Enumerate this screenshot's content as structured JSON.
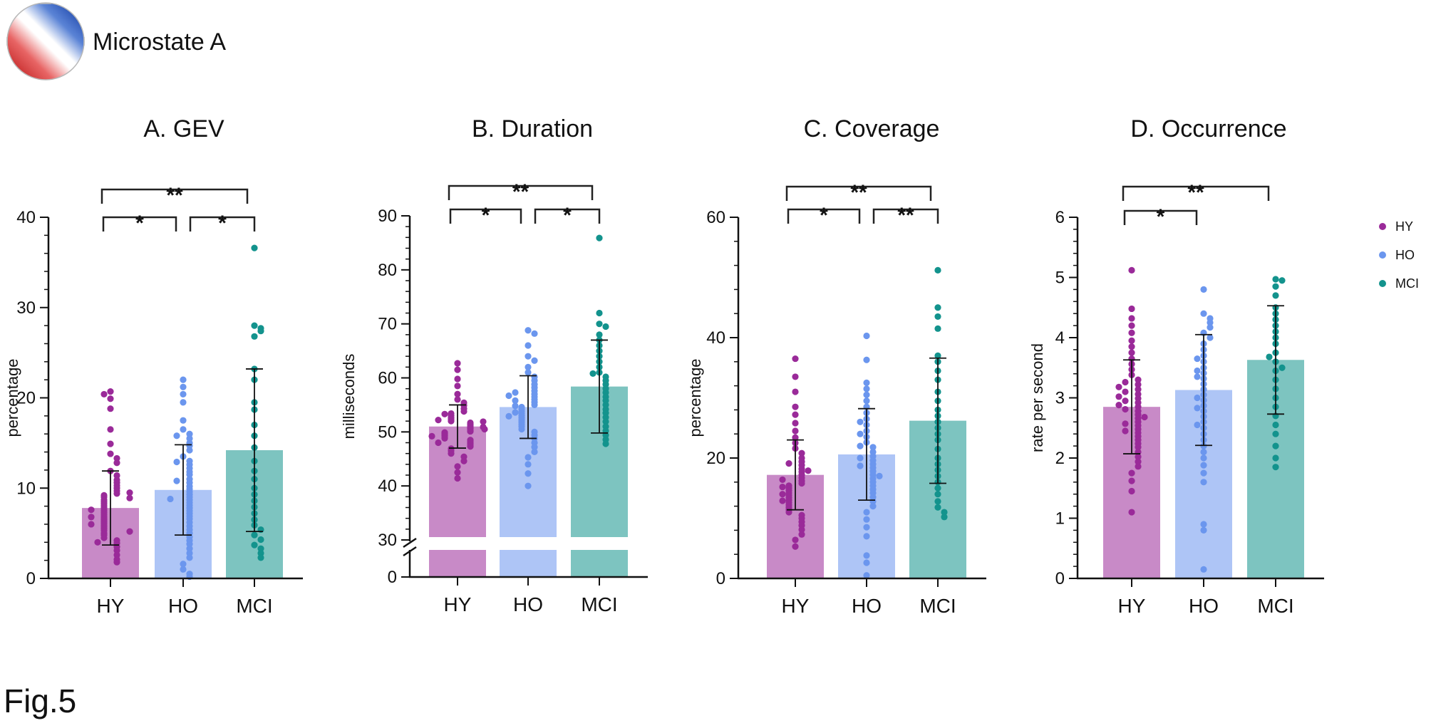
{
  "header": {
    "label": "Microstate A"
  },
  "figure_label": "Fig.5",
  "colors": {
    "HY": "#9a2a99",
    "HO": "#6b96ee",
    "MCI": "#13938d",
    "axis": "#111111"
  },
  "legend": [
    {
      "key": "HY",
      "label": "HY"
    },
    {
      "key": "HO",
      "label": "HO"
    },
    {
      "key": "MCI",
      "label": "MCI"
    }
  ],
  "chart_data": [
    {
      "id": "gev",
      "type": "bar",
      "title": "A. GEV",
      "ylabel": "percentage",
      "categories": [
        "HY",
        "HO",
        "MCI"
      ],
      "ylim": [
        0,
        40
      ],
      "yticks": [
        0,
        10,
        20,
        30,
        40
      ],
      "values": [
        7.8,
        9.8,
        14.2
      ],
      "sd": [
        4.1,
        5.0,
        9.0
      ],
      "axis_break": null,
      "significance": [
        {
          "from": 0,
          "to": 1,
          "label": "*",
          "level": 1
        },
        {
          "from": 1,
          "to": 2,
          "label": "*",
          "level": 1
        },
        {
          "from": 0,
          "to": 2,
          "label": "**",
          "level": 2
        }
      ],
      "points": [
        [
          20.7,
          19.9,
          20.4,
          18.8,
          16.5,
          14.9,
          13.8,
          13.3,
          12.8,
          11.9,
          11.4,
          10.9,
          10.6,
          10.3,
          10.0,
          9.7,
          9.4,
          9.2,
          9.0,
          8.7,
          8.5,
          8.3,
          8.1,
          7.9,
          7.7,
          7.5,
          7.3,
          7.1,
          6.9,
          6.7,
          6.5,
          6.3,
          6.1,
          5.9,
          5.7,
          5.5,
          5.3,
          5.0,
          4.8,
          4.5,
          4.2,
          3.9,
          3.5,
          3.1,
          2.6,
          2.1,
          1.8,
          9.5,
          8.9,
          7.6,
          6.8,
          6.0,
          5.2,
          4.0
        ],
        [
          22.0,
          21.2,
          20.4,
          19.5,
          17.5,
          16.5,
          16.0,
          15.5,
          15.0,
          14.7,
          14.2,
          13.5,
          13.0,
          12.6,
          12.2,
          11.8,
          11.5,
          11.0,
          10.6,
          10.2,
          9.9,
          9.6,
          9.3,
          9.0,
          8.7,
          8.4,
          8.1,
          7.8,
          7.5,
          7.2,
          6.9,
          6.6,
          6.2,
          5.8,
          5.4,
          5.0,
          4.6,
          4.2,
          3.8,
          3.3,
          2.8,
          2.3,
          1.6,
          1.0,
          0.5,
          0.2,
          8.8,
          10.8,
          12.9,
          15.8
        ],
        [
          36.6,
          28.0,
          27.7,
          27.4,
          26.8,
          23.2,
          22.0,
          19.5,
          17.0,
          14.5,
          13.0,
          11.9,
          11.0,
          10.0,
          9.3,
          8.6,
          7.9,
          7.2,
          6.5,
          5.9,
          5.4,
          4.8,
          4.3,
          3.7,
          3.3,
          2.8,
          2.3,
          15.8,
          18.7
        ]
      ]
    },
    {
      "id": "duration",
      "type": "bar",
      "title": "B. Duration",
      "ylabel": "milliseconds",
      "categories": [
        "HY",
        "HO",
        "MCI"
      ],
      "ylim": [
        30,
        90
      ],
      "yticks": [
        30,
        40,
        50,
        60,
        70,
        80,
        90
      ],
      "extra_tick": 0,
      "values": [
        51.0,
        54.6,
        58.4
      ],
      "sd": [
        4.0,
        5.8,
        8.6
      ],
      "axis_break": true,
      "significance": [
        {
          "from": 0,
          "to": 1,
          "label": "*",
          "level": 1
        },
        {
          "from": 1,
          "to": 2,
          "label": "*",
          "level": 1
        },
        {
          "from": 0,
          "to": 2,
          "label": "**",
          "level": 2
        }
      ],
      "points": [
        [
          62.7,
          61.5,
          59.8,
          58.5,
          57.0,
          56.0,
          55.4,
          54.9,
          54.3,
          53.8,
          53.4,
          53.0,
          52.6,
          52.3,
          52.0,
          51.7,
          51.4,
          51.1,
          50.8,
          50.6,
          50.3,
          50.1,
          49.9,
          49.7,
          49.5,
          49.3,
          49.0,
          48.8,
          48.5,
          48.2,
          47.9,
          47.6,
          47.3,
          46.9,
          46.5,
          46.0,
          45.4,
          44.6,
          43.6,
          42.5,
          41.4,
          50.9,
          52.2,
          49.2,
          51.9,
          53.3,
          48.0,
          50.5
        ],
        [
          68.8,
          68.2,
          66.0,
          64.0,
          63.2,
          62.0,
          61.0,
          60.2,
          59.5,
          58.8,
          58.2,
          57.6,
          57.0,
          56.5,
          56.0,
          55.5,
          55.0,
          54.6,
          54.2,
          53.8,
          53.4,
          53.0,
          52.6,
          52.2,
          51.8,
          51.4,
          51.0,
          50.5,
          50.0,
          49.4,
          48.8,
          48.0,
          47.2,
          46.3,
          45.3,
          44.0,
          42.3,
          40.0,
          54.8,
          55.8,
          57.3,
          53.6,
          56.7,
          52.9
        ],
        [
          85.9,
          72.0,
          70.0,
          69.5,
          68.0,
          67.0,
          66.0,
          65.0,
          63.0,
          62.0,
          61.0,
          60.2,
          59.5,
          58.8,
          58.0,
          57.3,
          56.5,
          55.8,
          55.0,
          54.2,
          53.5,
          52.7,
          51.9,
          51.0,
          50.2,
          49.4,
          48.6,
          47.8,
          64.0,
          60.8
        ]
      ]
    },
    {
      "id": "coverage",
      "type": "bar",
      "title": "C. Coverage",
      "ylabel": "percentage",
      "categories": [
        "HY",
        "HO",
        "MCI"
      ],
      "ylim": [
        0,
        60
      ],
      "yticks": [
        0,
        20,
        40,
        60
      ],
      "values": [
        17.2,
        20.6,
        26.2
      ],
      "sd": [
        5.8,
        7.6,
        10.4
      ],
      "axis_break": null,
      "significance": [
        {
          "from": 0,
          "to": 1,
          "label": "*",
          "level": 1
        },
        {
          "from": 1,
          "to": 2,
          "label": "**",
          "level": 1
        },
        {
          "from": 0,
          "to": 2,
          "label": "**",
          "level": 2
        }
      ],
      "points": [
        [
          36.5,
          33.5,
          31.0,
          28.5,
          27.2,
          25.8,
          24.5,
          23.4,
          22.5,
          21.6,
          20.8,
          20.0,
          19.4,
          18.8,
          18.2,
          17.7,
          17.2,
          16.7,
          16.2,
          15.8,
          15.4,
          15.0,
          14.6,
          14.2,
          13.8,
          13.4,
          13.0,
          12.6,
          12.2,
          11.8,
          11.4,
          11.0,
          10.5,
          10.0,
          9.4,
          8.8,
          8.1,
          7.3,
          6.4,
          5.3,
          17.9,
          16.4,
          15.2,
          14.0,
          19.1,
          12.9
        ],
        [
          40.3,
          36.3,
          32.5,
          31.5,
          30.5,
          29.5,
          28.5,
          27.5,
          26.5,
          25.5,
          24.5,
          23.5,
          22.6,
          21.8,
          21.0,
          20.3,
          19.6,
          19.0,
          18.4,
          17.8,
          17.2,
          16.6,
          16.0,
          15.4,
          14.8,
          14.2,
          13.5,
          12.8,
          12.0,
          11.0,
          9.8,
          8.5,
          7.0,
          3.8,
          2.6,
          0.5,
          20.0,
          22.0,
          18.7,
          24.0,
          17.0,
          26.0
        ],
        [
          51.2,
          45.0,
          43.5,
          41.5,
          37.0,
          36.0,
          34.5,
          33.0,
          31.0,
          29.5,
          28.0,
          27.0,
          26.0,
          25.0,
          24.0,
          23.0,
          21.5,
          20.0,
          19.0,
          18.0,
          17.0,
          16.0,
          15.0,
          14.0,
          12.8,
          11.8,
          11.0,
          10.2
        ]
      ]
    },
    {
      "id": "occurrence",
      "type": "bar",
      "title": "D. Occurrence",
      "ylabel": "rate per second",
      "categories": [
        "HY",
        "HO",
        "MCI"
      ],
      "ylim": [
        0,
        6
      ],
      "yticks": [
        0,
        1,
        2,
        3,
        4,
        5,
        6
      ],
      "values": [
        2.85,
        3.13,
        3.63
      ],
      "sd": [
        0.78,
        0.92,
        0.9
      ],
      "axis_break": null,
      "significance": [
        {
          "from": 0,
          "to": 1,
          "label": "*",
          "level": 1
        },
        {
          "from": 0,
          "to": 2,
          "label": "**",
          "level": 2
        }
      ],
      "points": [
        [
          5.12,
          4.48,
          4.32,
          4.2,
          4.08,
          3.95,
          3.85,
          3.75,
          3.65,
          3.56,
          3.47,
          3.38,
          3.3,
          3.22,
          3.14,
          3.06,
          2.99,
          2.92,
          2.85,
          2.78,
          2.72,
          2.66,
          2.6,
          2.54,
          2.48,
          2.42,
          2.36,
          2.3,
          2.24,
          2.18,
          2.1,
          2.02,
          1.94,
          1.86,
          1.75,
          1.62,
          1.45,
          1.1,
          2.95,
          2.81,
          3.1,
          2.68,
          3.02,
          2.57,
          3.26,
          2.45,
          2.88,
          3.18
        ],
        [
          4.8,
          4.4,
          4.32,
          4.25,
          4.17,
          4.08,
          4.0,
          3.9,
          3.8,
          3.7,
          3.6,
          3.5,
          3.41,
          3.32,
          3.23,
          3.14,
          3.05,
          2.96,
          2.87,
          2.78,
          2.69,
          2.6,
          2.5,
          2.4,
          2.3,
          2.2,
          2.1,
          2.0,
          1.88,
          1.75,
          1.6,
          0.9,
          0.8,
          0.15,
          3.45,
          3.35,
          3.0,
          2.55,
          3.65,
          2.83
        ],
        [
          4.97,
          4.95,
          4.85,
          4.7,
          4.5,
          4.4,
          4.3,
          4.2,
          4.1,
          4.0,
          3.9,
          3.75,
          3.6,
          3.45,
          3.3,
          3.15,
          3.0,
          2.85,
          2.7,
          2.55,
          2.4,
          2.2,
          2.0,
          1.85,
          3.5,
          3.68
        ]
      ]
    }
  ]
}
